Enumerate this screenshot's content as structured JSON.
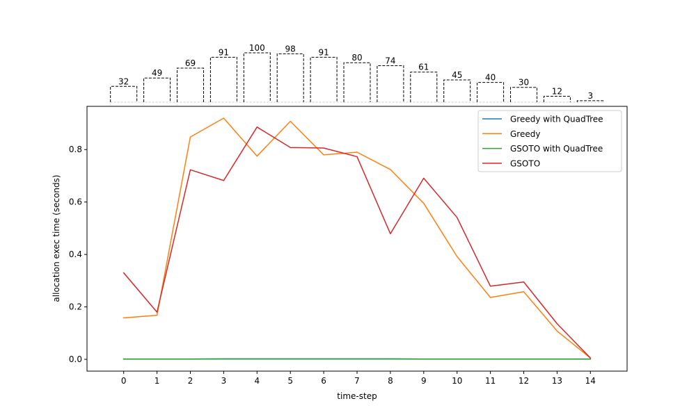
{
  "chart_data": {
    "type": "line",
    "x": [
      0,
      1,
      2,
      3,
      4,
      5,
      6,
      7,
      8,
      9,
      10,
      11,
      12,
      13,
      14
    ],
    "xlabel": "time-step",
    "ylabel": "allocation exec time (seconds)",
    "xlim": [
      -1.1,
      15.1
    ],
    "ylim": [
      -0.045,
      0.965
    ],
    "yticks": [
      0.0,
      0.2,
      0.4,
      0.6,
      0.8
    ],
    "ytick_labels": [
      "0.0",
      "0.2",
      "0.4",
      "0.6",
      "0.8"
    ],
    "grid": false,
    "legend_position": "top-right",
    "series": [
      {
        "name": "Greedy with QuadTree",
        "color": "#1f77b4",
        "values": [
          0.001,
          0.001,
          0.001,
          0.001,
          0.001,
          0.001,
          0.001,
          0.001,
          0.001,
          0.001,
          0.001,
          0.001,
          0.001,
          0.001,
          0.001
        ]
      },
      {
        "name": "Greedy",
        "color": "#ff7f0e",
        "values": [
          0.158,
          0.168,
          0.848,
          0.92,
          0.775,
          0.908,
          0.78,
          0.79,
          0.724,
          0.595,
          0.392,
          0.236,
          0.258,
          0.108,
          0.005
        ]
      },
      {
        "name": "GSOTO with QuadTree",
        "color": "#2ca02c",
        "values": [
          0.001,
          0.001,
          0.001,
          0.002,
          0.002,
          0.002,
          0.002,
          0.002,
          0.002,
          0.001,
          0.001,
          0.001,
          0.001,
          0.001,
          0.001
        ]
      },
      {
        "name": "GSOTO",
        "color": "#d62728",
        "values": [
          0.33,
          0.18,
          0.723,
          0.682,
          0.886,
          0.808,
          0.806,
          0.773,
          0.479,
          0.691,
          0.541,
          0.279,
          0.295,
          0.136,
          0.005
        ]
      }
    ],
    "top_bars": {
      "values": [
        32,
        49,
        69,
        91,
        100,
        98,
        91,
        80,
        74,
        61,
        45,
        40,
        30,
        12,
        3
      ],
      "max": 100,
      "style": "dashed-outline"
    }
  }
}
